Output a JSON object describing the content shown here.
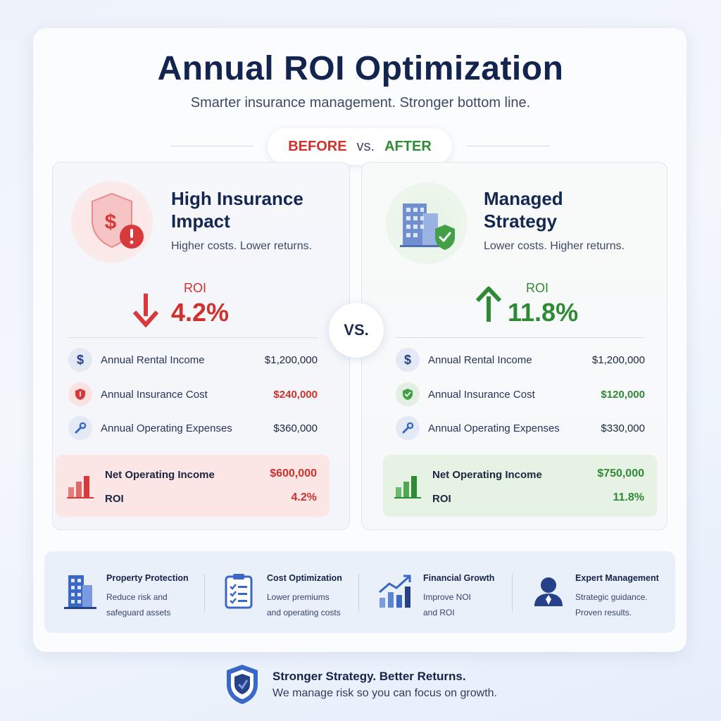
{
  "header": {
    "title": "Annual ROI Optimization",
    "subtitle": "Smarter insurance management. Stronger bottom line."
  },
  "comparison_pill": {
    "before": "BEFORE",
    "vs": "vs.",
    "after": "AFTER"
  },
  "center_badge": "VS.",
  "before_panel": {
    "title_line1": "High Insurance",
    "title_line2": "Impact",
    "tagline": "Higher costs. Lower returns.",
    "roi_label": "ROI",
    "roi_value": "4.2%",
    "rows": [
      {
        "icon": "dollar-icon",
        "label": "Annual Rental Income",
        "value": "$1,200,000"
      },
      {
        "icon": "shield-icon",
        "label": "Annual Insurance Cost",
        "value": "$240,000"
      },
      {
        "icon": "wrench-icon",
        "label": "Annual Operating Expenses",
        "value": "$360,000"
      }
    ],
    "summary": {
      "noi_label": "Net Operating Income",
      "noi_value": "$600,000",
      "roi_label": "ROI",
      "roi_value": "4.2%"
    }
  },
  "after_panel": {
    "title_line1": "Managed",
    "title_line2": "Strategy",
    "tagline": "Lower costs. Higher returns.",
    "roi_label": "ROI",
    "roi_value": "11.8%",
    "rows": [
      {
        "icon": "dollar-icon",
        "label": "Annual Rental Income",
        "value": "$1,200,000"
      },
      {
        "icon": "shield-check-icon",
        "label": "Annual Insurance Cost",
        "value": "$120,000"
      },
      {
        "icon": "wrench-icon",
        "label": "Annual Operating Expenses",
        "value": "$330,000"
      }
    ],
    "summary": {
      "noi_label": "Net Operating Income",
      "noi_value": "$750,000",
      "roi_label": "ROI",
      "roi_value": "11.8%"
    }
  },
  "features": [
    {
      "icon": "building-icon",
      "title": "Property Protection",
      "line1": "Reduce risk and",
      "line2": "safeguard assets"
    },
    {
      "icon": "clipboard-check-icon",
      "title": "Cost Optimization",
      "line1": "Lower premiums",
      "line2": "and operating costs"
    },
    {
      "icon": "growth-chart-icon",
      "title": "Financial Growth",
      "line1": "Improve NOI",
      "line2": "and ROI"
    },
    {
      "icon": "expert-person-icon",
      "title": "Expert Management",
      "line1": "Strategic guidance.",
      "line2": "Proven results."
    }
  ],
  "footer": {
    "title": "Stronger Strategy. Better Returns.",
    "subtitle": "We manage risk so you can focus on growth."
  },
  "colors": {
    "navy": "#13254f",
    "red": "#d0312d",
    "green": "#2f8a35",
    "blue": "#3a68c8"
  }
}
